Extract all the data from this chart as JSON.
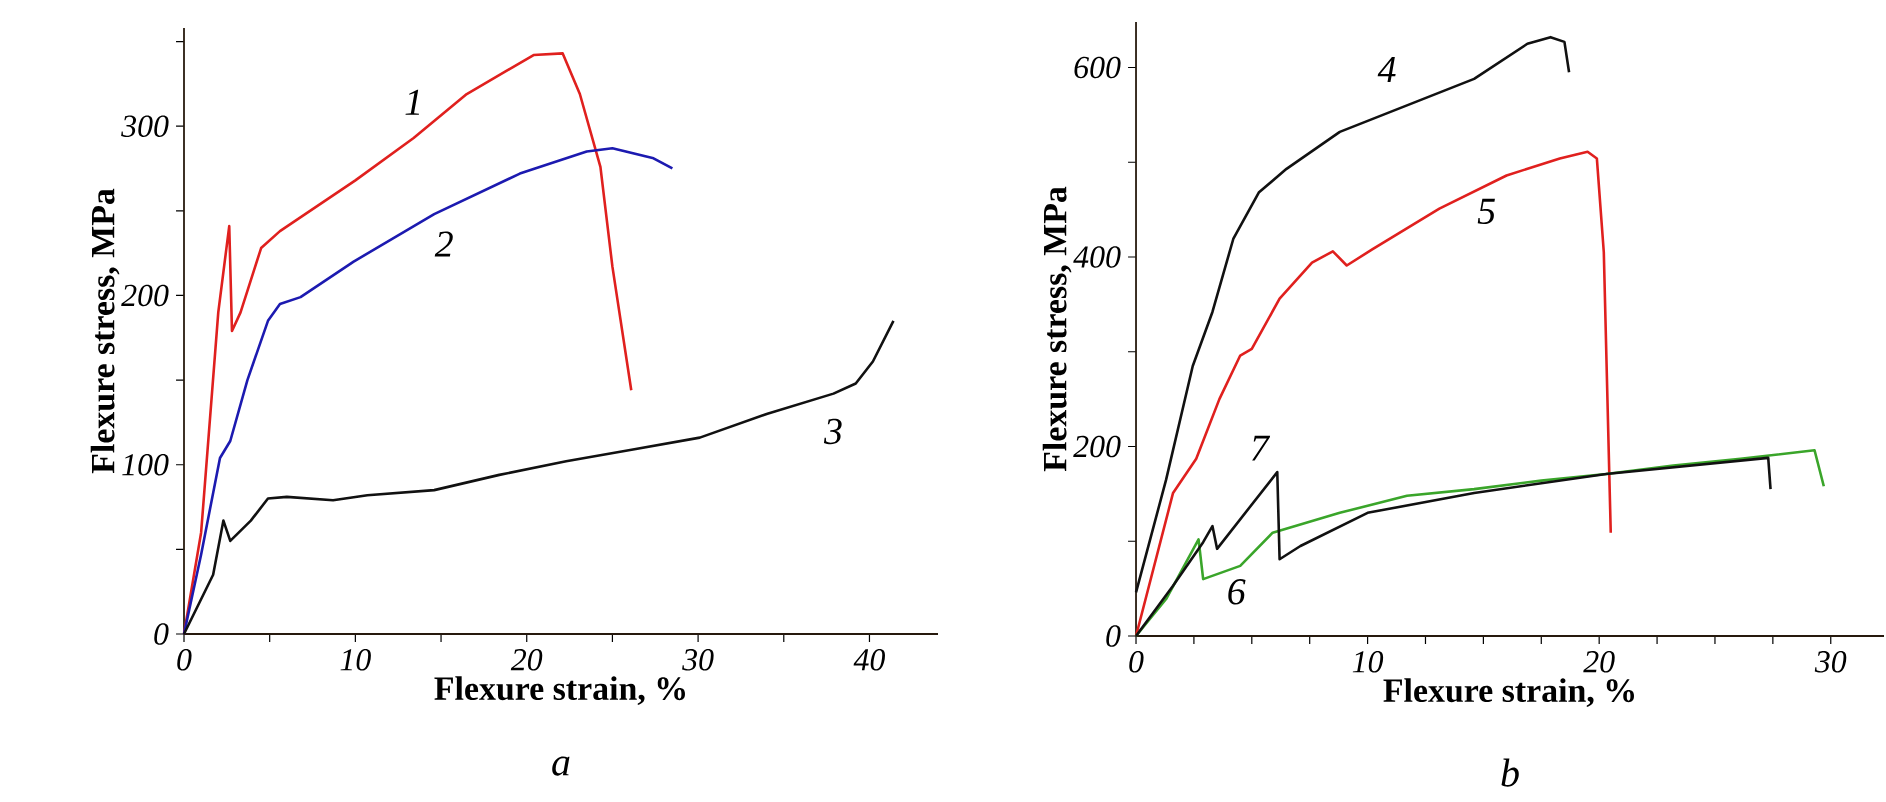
{
  "chart_data": [
    {
      "type": "line",
      "xlabel": "Flexure strain, %",
      "ylabel": "Flexure stress, MPa",
      "xlim": [
        0,
        44
      ],
      "ylim": [
        0,
        358
      ],
      "xticks": [
        0,
        {
          "value": 5,
          "label": null
        },
        10,
        {
          "value": 15,
          "label": null
        },
        20,
        {
          "value": 25,
          "label": null
        },
        30,
        {
          "value": 35,
          "label": null
        },
        40
      ],
      "yticks": [
        0,
        {
          "value": 50,
          "label": null
        },
        100,
        {
          "value": 150,
          "label": null
        },
        200,
        {
          "value": 250,
          "label": null
        },
        300,
        {
          "value": 350,
          "label": null
        }
      ],
      "series": [
        {
          "name": "1",
          "color": "#e0201e",
          "x": [
            0,
            1,
            2,
            2.64,
            2.8,
            3.3,
            4.5,
            5.6,
            10,
            13.4,
            16.5,
            20.4,
            22.1,
            23.1,
            24.3,
            25,
            26.1
          ],
          "values": [
            0,
            60,
            190,
            241,
            179,
            190,
            228,
            238,
            268,
            293,
            319,
            342,
            343,
            319,
            276,
            217,
            144
          ]
        },
        {
          "name": "2",
          "color": "#1c1ab0",
          "x": [
            0,
            1,
            2.1,
            2.7,
            3.7,
            4.9,
            5.6,
            6.8,
            9.9,
            14.6,
            19.6,
            23.5,
            25,
            27.4,
            28.5
          ],
          "values": [
            0,
            47,
            104,
            114,
            150,
            185,
            195,
            199,
            220,
            248,
            272,
            285,
            287,
            281,
            275
          ]
        },
        {
          "name": "3",
          "color": "#111111",
          "x": [
            0,
            1.7,
            2.3,
            2.7,
            3.9,
            4.9,
            6,
            8.7,
            10.7,
            14.6,
            18.4,
            22.3,
            26.2,
            30.1,
            34,
            37.9,
            39.2,
            40.2,
            41.4
          ],
          "values": [
            0,
            35,
            67,
            55,
            67,
            80,
            81,
            79,
            82,
            85,
            94,
            102,
            109,
            116,
            130,
            142,
            148,
            161,
            185
          ]
        }
      ],
      "annotations": [
        "a"
      ]
    },
    {
      "type": "line",
      "xlabel": "Flexure strain, %",
      "ylabel": "Flexure stress, MPa",
      "xlim": [
        0,
        32.3
      ],
      "ylim": [
        0,
        648
      ],
      "xticks": [
        0,
        {
          "value": 2.5,
          "label": null
        },
        {
          "value": 5,
          "label": null
        },
        {
          "value": 7.5,
          "label": null
        },
        10,
        {
          "value": 12.5,
          "label": null
        },
        {
          "value": 15,
          "label": null
        },
        {
          "value": 17.5,
          "label": null
        },
        20,
        {
          "value": 22.5,
          "label": null
        },
        {
          "value": 25,
          "label": null
        },
        {
          "value": 27.5,
          "label": null
        },
        30
      ],
      "yticks": [
        0,
        {
          "value": 100,
          "label": null
        },
        200,
        {
          "value": 300,
          "label": null
        },
        400,
        {
          "value": 500,
          "label": null
        },
        600
      ],
      "series": [
        {
          "name": "4",
          "color": "#111111",
          "x": [
            0,
            1.3,
            2.45,
            3.3,
            4.2,
            5.3,
            6.5,
            8.8,
            11.7,
            14.6,
            16.9,
            17.9,
            18.5,
            18.7
          ],
          "values": [
            46,
            165,
            285,
            342,
            419,
            468,
            493,
            532,
            560,
            588,
            625,
            632,
            627,
            595
          ]
        },
        {
          "name": "5",
          "color": "#e0201e",
          "x": [
            0,
            1.6,
            2.6,
            3.6,
            4.5,
            5,
            6.2,
            7.6,
            8.5,
            9.1,
            10.2,
            13.1,
            16,
            18.3,
            19.5,
            19.9,
            20.2,
            20.5
          ],
          "values": [
            0,
            151,
            187,
            250,
            296,
            303,
            356,
            394,
            406,
            391,
            408,
            451,
            486,
            504,
            511,
            504,
            405,
            109
          ]
        },
        {
          "name": "6",
          "color": "#3aa52a",
          "x": [
            0,
            1.3,
            2.7,
            2.9,
            4.5,
            5.9,
            8.8,
            11.7,
            14.6,
            17.5,
            20.3,
            23.2,
            26.1,
            29.3,
            29.7
          ],
          "values": [
            0,
            39,
            102,
            60,
            74,
            109,
            130,
            148,
            155,
            164,
            171,
            180,
            187,
            196,
            158
          ]
        },
        {
          "name": "7",
          "color": "#111111",
          "x": [
            0,
            1.6,
            2.9,
            3.3,
            3.5,
            6.1,
            6.2,
            7.1,
            10,
            14.6,
            20.3,
            27.3,
            27.4
          ],
          "values": [
            0,
            53,
            99,
            116,
            92,
            173,
            81,
            95,
            130,
            151,
            171,
            188,
            155
          ]
        }
      ],
      "annotations": [
        "b"
      ]
    }
  ]
}
